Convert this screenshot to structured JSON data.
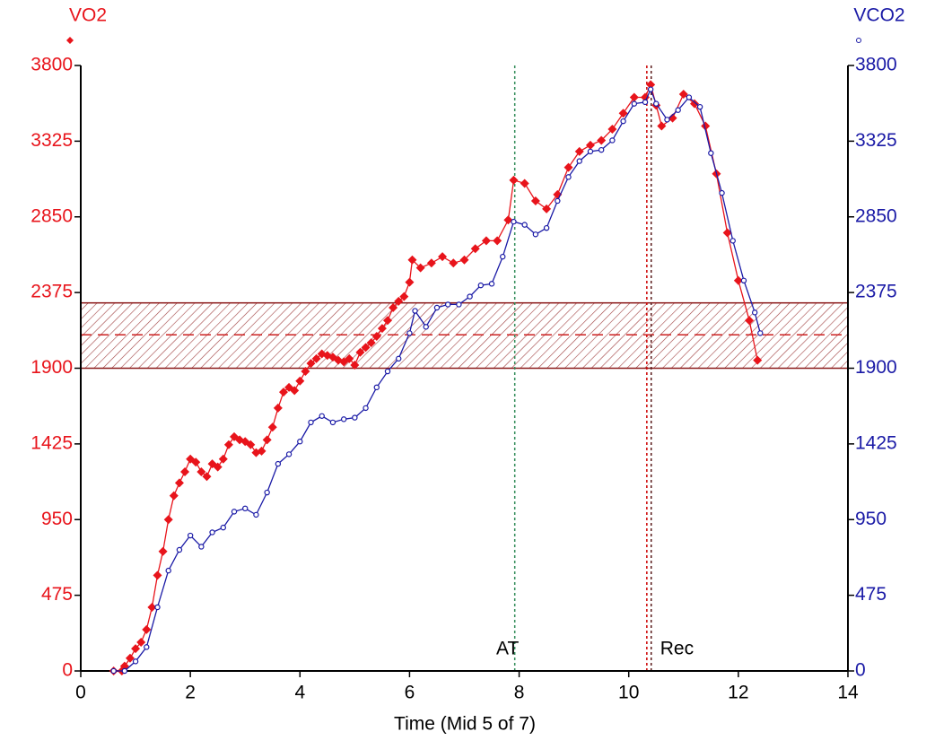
{
  "chart_data": {
    "type": "line",
    "xlabel": "Time (Mid 5 of 7)",
    "xlim": [
      0,
      14
    ],
    "xticks": [
      0,
      2,
      4,
      6,
      8,
      10,
      12,
      14
    ],
    "ylim": [
      0,
      3800
    ],
    "yticks": [
      0,
      475,
      950,
      1425,
      1900,
      2375,
      2850,
      3325,
      3800
    ],
    "y2lim": [
      0,
      3800
    ],
    "y2ticks": [
      0,
      475,
      950,
      1425,
      1900,
      2375,
      2850,
      3325,
      3800
    ],
    "band": {
      "range": [
        1900,
        2310
      ],
      "mid": 2110,
      "color": "#8b1a1a"
    },
    "vlines": [
      {
        "label": "AT",
        "x": 7.92,
        "color": "#2e8b57"
      },
      {
        "x": 10.33,
        "color": "#cc0000"
      },
      {
        "label": "Rec",
        "x": 10.41,
        "color": "#5a1a1a"
      }
    ],
    "series": [
      {
        "name": "VO2",
        "color": "#e8141b",
        "axis": "y",
        "marker": "diamond",
        "x": [
          0.6,
          0.75,
          0.8,
          0.9,
          1.0,
          1.1,
          1.2,
          1.3,
          1.4,
          1.5,
          1.6,
          1.7,
          1.8,
          1.9,
          2.0,
          2.1,
          2.2,
          2.3,
          2.4,
          2.5,
          2.6,
          2.7,
          2.8,
          2.9,
          3.0,
          3.1,
          3.2,
          3.3,
          3.4,
          3.5,
          3.6,
          3.7,
          3.8,
          3.9,
          4.0,
          4.1,
          4.2,
          4.3,
          4.4,
          4.5,
          4.6,
          4.7,
          4.8,
          4.9,
          5.0,
          5.1,
          5.2,
          5.3,
          5.4,
          5.5,
          5.6,
          5.7,
          5.8,
          5.9,
          6.0,
          6.05,
          6.2,
          6.4,
          6.6,
          6.8,
          7.0,
          7.2,
          7.4,
          7.6,
          7.8,
          7.9,
          8.1,
          8.3,
          8.5,
          8.7,
          8.9,
          9.1,
          9.3,
          9.5,
          9.7,
          9.9,
          10.1,
          10.3,
          10.4,
          10.5,
          10.6,
          10.8,
          11.0,
          11.2,
          11.4,
          11.6,
          11.8,
          12.0,
          12.2,
          12.35
        ],
        "values": [
          0,
          0,
          30,
          80,
          140,
          180,
          260,
          400,
          600,
          750,
          950,
          1100,
          1180,
          1250,
          1330,
          1310,
          1250,
          1220,
          1300,
          1280,
          1330,
          1420,
          1470,
          1450,
          1440,
          1420,
          1370,
          1380,
          1450,
          1530,
          1650,
          1750,
          1780,
          1760,
          1820,
          1880,
          1930,
          1960,
          1990,
          1980,
          1970,
          1950,
          1940,
          1960,
          1920,
          2000,
          2030,
          2060,
          2100,
          2150,
          2200,
          2280,
          2320,
          2350,
          2440,
          2580,
          2530,
          2560,
          2600,
          2560,
          2580,
          2650,
          2700,
          2700,
          2830,
          3080,
          3060,
          2950,
          2900,
          2990,
          3160,
          3260,
          3300,
          3330,
          3400,
          3500,
          3600,
          3600,
          3680,
          3550,
          3420,
          3470,
          3620,
          3560,
          3420,
          3120,
          2750,
          2450,
          2200,
          1950
        ]
      },
      {
        "name": "VCO2",
        "color": "#1a1aa6",
        "axis": "y2",
        "marker": "circle",
        "x": [
          0.6,
          0.8,
          1.0,
          1.2,
          1.4,
          1.6,
          1.8,
          2.0,
          2.2,
          2.4,
          2.6,
          2.8,
          3.0,
          3.2,
          3.4,
          3.6,
          3.8,
          4.0,
          4.2,
          4.4,
          4.6,
          4.8,
          5.0,
          5.2,
          5.4,
          5.6,
          5.8,
          6.0,
          6.1,
          6.3,
          6.5,
          6.7,
          6.9,
          7.1,
          7.3,
          7.5,
          7.7,
          7.9,
          8.1,
          8.3,
          8.5,
          8.7,
          8.9,
          9.1,
          9.3,
          9.5,
          9.7,
          9.9,
          10.1,
          10.3,
          10.4,
          10.5,
          10.7,
          10.9,
          11.1,
          11.3,
          11.5,
          11.7,
          11.9,
          12.1,
          12.3,
          12.4
        ],
        "values": [
          0,
          0,
          60,
          150,
          400,
          630,
          760,
          850,
          780,
          870,
          900,
          1000,
          1020,
          980,
          1120,
          1300,
          1360,
          1440,
          1560,
          1600,
          1560,
          1580,
          1590,
          1650,
          1780,
          1880,
          1960,
          2120,
          2260,
          2160,
          2280,
          2300,
          2300,
          2350,
          2420,
          2430,
          2600,
          2820,
          2800,
          2740,
          2780,
          2950,
          3100,
          3200,
          3260,
          3270,
          3330,
          3450,
          3560,
          3570,
          3650,
          3560,
          3460,
          3520,
          3600,
          3540,
          3250,
          3000,
          2700,
          2450,
          2250,
          2120
        ]
      }
    ]
  }
}
